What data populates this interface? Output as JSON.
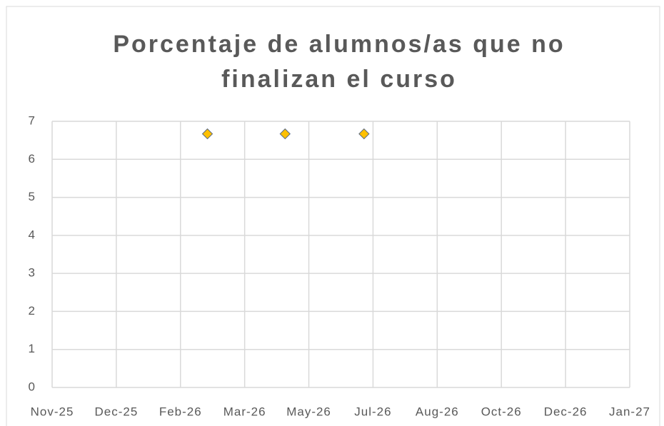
{
  "chart_data": {
    "type": "scatter",
    "title": "Porcentaje de alumnos/as que no finalizan el curso",
    "x": [
      2.42,
      3.63,
      4.86
    ],
    "values": [
      6.67,
      6.67,
      6.67
    ],
    "color": "#FFC000",
    "xlim": [
      0,
      9
    ],
    "xticks": [
      {
        "value": 0,
        "label": "Nov-25"
      },
      {
        "value": 1,
        "label": "Dec-25"
      },
      {
        "value": 2,
        "label": "Feb-26"
      },
      {
        "value": 3,
        "label": "Mar-26"
      },
      {
        "value": 4,
        "label": "May-26"
      },
      {
        "value": 5,
        "label": "Jul-26"
      },
      {
        "value": 6,
        "label": "Aug-26"
      },
      {
        "value": 7,
        "label": "Oct-26"
      },
      {
        "value": 8,
        "label": "Dec-26"
      },
      {
        "value": 9,
        "label": "Jan-27"
      }
    ],
    "ylim": [
      0,
      7
    ],
    "yticks": [
      0,
      1,
      2,
      3,
      4,
      5,
      6,
      7
    ],
    "grid": true
  }
}
